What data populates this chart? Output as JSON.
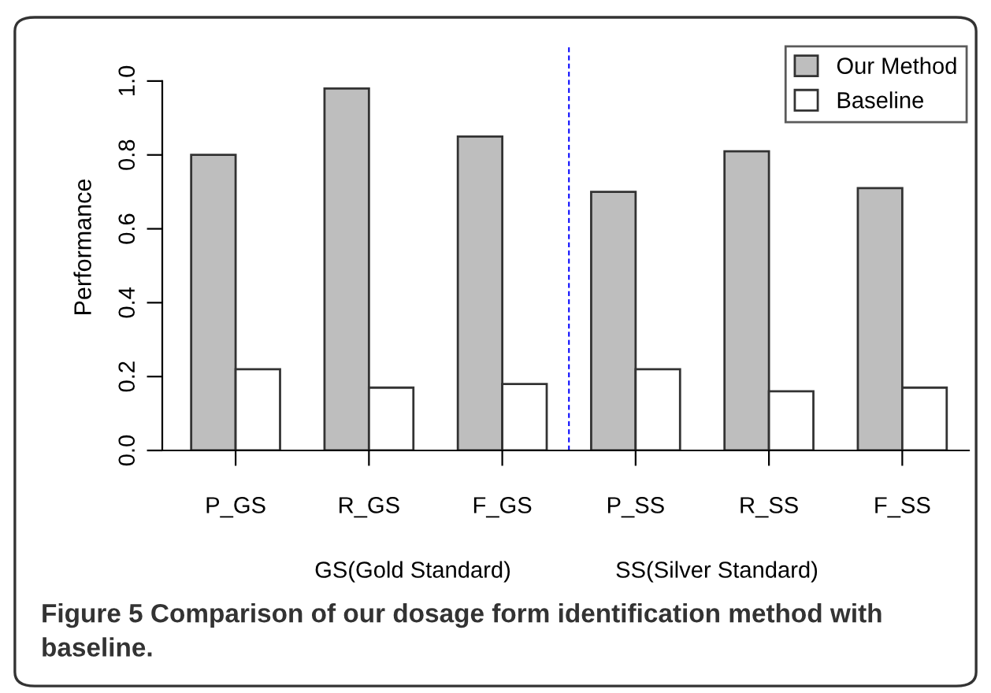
{
  "chart_data": {
    "type": "bar",
    "ylabel": "Performance",
    "categories": [
      "P_GS",
      "R_GS",
      "F_GS",
      "P_SS",
      "R_SS",
      "F_SS"
    ],
    "series": [
      {
        "name": "Our Method",
        "color": "#bebebe",
        "values": [
          0.8,
          0.98,
          0.85,
          0.7,
          0.81,
          0.71
        ]
      },
      {
        "name": "Baseline",
        "color": "#ffffff",
        "values": [
          0.22,
          0.17,
          0.18,
          0.22,
          0.16,
          0.17
        ]
      }
    ],
    "ylim": [
      0,
      1.1
    ],
    "yticks": [
      {
        "value": 0,
        "label": "0.0"
      },
      {
        "value": 0.2,
        "label": "0.2"
      },
      {
        "value": 0.4,
        "label": "0.4"
      },
      {
        "value": 0.6,
        "label": "0.6"
      },
      {
        "value": 0.8,
        "label": "0.8"
      },
      {
        "value": 1.0,
        "label": "1.0"
      }
    ],
    "legend": "top right",
    "grid": false,
    "annotations": [
      "GS(Gold Standard)",
      "SS(Silver Standard)",
      "Figure 5 Comparison of our dosage form identification method with baseline."
    ]
  }
}
